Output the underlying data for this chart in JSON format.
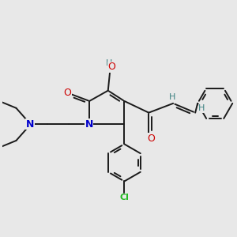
{
  "bg_color": "#e8e8e8",
  "bond_color": "#1a1a1a",
  "oxygen_color": "#cc0000",
  "nitrogen_color": "#0000cc",
  "chlorine_color": "#22bb22",
  "hydrogen_color": "#3a8080",
  "fig_width": 3.0,
  "fig_height": 3.0,
  "dpi": 100,
  "xlim": [
    -4.5,
    5.5
  ],
  "ylim": [
    -4.5,
    4.0
  ]
}
